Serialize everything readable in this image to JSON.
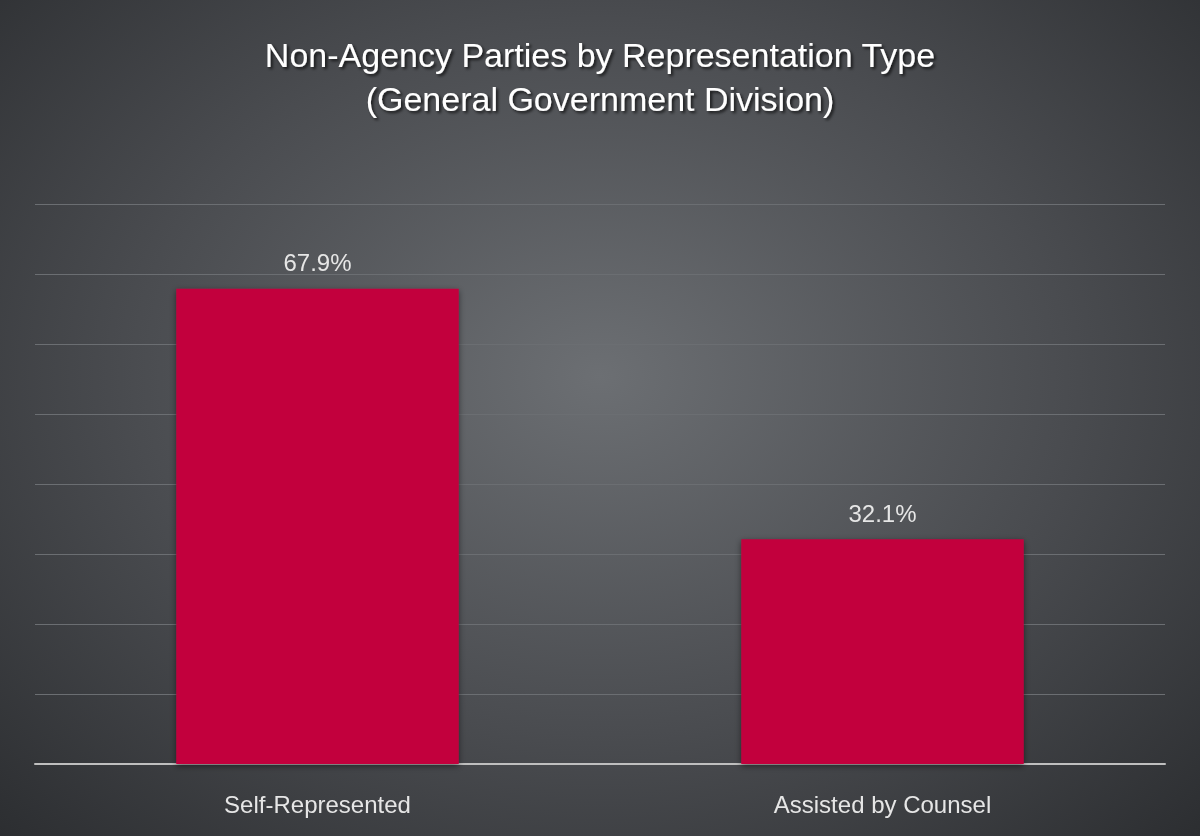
{
  "chart_data": {
    "type": "bar",
    "title": "Non-Agency Parties by Representation Type\n(General Government Division)",
    "categories": [
      "Self-Represented",
      "Assisted by Counsel"
    ],
    "values": [
      67.9,
      32.1
    ],
    "value_labels": [
      "67.9%",
      "32.1%"
    ],
    "color": "#c2063c",
    "ylim": [
      0,
      80
    ],
    "yticks": [
      {
        "value": 0,
        "label": null
      },
      {
        "value": 10,
        "label": null
      },
      {
        "value": 20,
        "label": null
      },
      {
        "value": 30,
        "label": null
      },
      {
        "value": 40,
        "label": null
      },
      {
        "value": 50,
        "label": null
      },
      {
        "value": 60,
        "label": null
      },
      {
        "value": 70,
        "label": null
      },
      {
        "value": 80,
        "label": null
      }
    ],
    "grid": "y",
    "tick_labels": "x"
  }
}
